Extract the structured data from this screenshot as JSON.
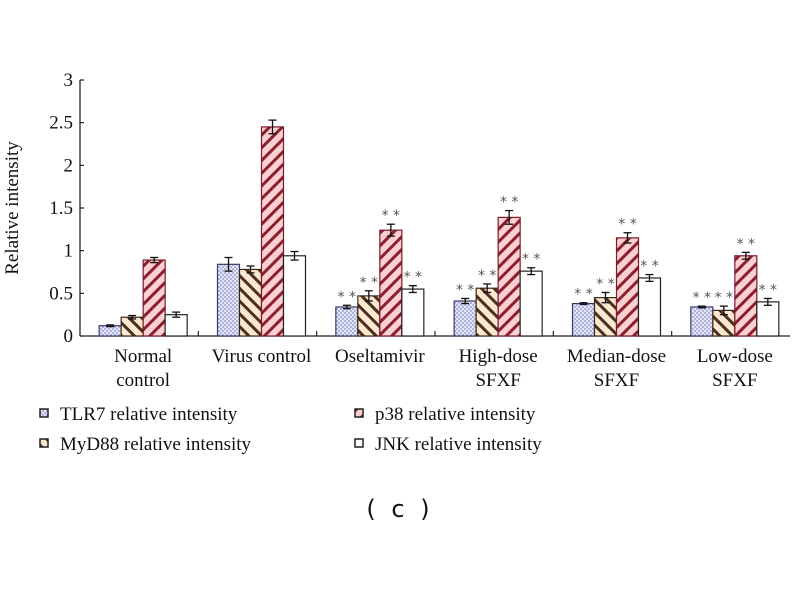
{
  "chart_data": {
    "type": "bar",
    "title": "",
    "xlabel": "",
    "ylabel": "Relative intensity",
    "ylim": [
      0,
      3
    ],
    "yticks": [
      "0",
      "0.5",
      "1",
      "1.5",
      "2",
      "2.5",
      "3"
    ],
    "yticks_values": [
      0,
      0.5,
      1,
      1.5,
      2,
      2.5,
      3
    ],
    "grid": false,
    "legend_position": "bottom",
    "categories": [
      [
        "Normal",
        "control"
      ],
      [
        "Virus control"
      ],
      [
        "Oseltamivir"
      ],
      [
        "High-dose",
        "SFXF"
      ],
      [
        "Median-dose",
        "SFXF"
      ],
      [
        "Low-dose",
        "SFXF"
      ]
    ],
    "series": [
      {
        "name": "TLR7 relative intensity",
        "pattern": "dots",
        "color": "#c9cdef",
        "edge": "#3a3a6a",
        "values": [
          0.12,
          0.84,
          0.34,
          0.41,
          0.38,
          0.34
        ],
        "errors": [
          0.01,
          0.08,
          0.02,
          0.03,
          0.01,
          0.01
        ],
        "significance": [
          "",
          "",
          "**",
          "**",
          "**",
          "**"
        ]
      },
      {
        "name": "MyD88 relative intensity",
        "pattern": "hatch-back",
        "color": "#fde4c8",
        "edge": "#3a2a1a",
        "values": [
          0.22,
          0.78,
          0.47,
          0.56,
          0.45,
          0.3
        ],
        "errors": [
          0.02,
          0.04,
          0.06,
          0.05,
          0.06,
          0.05
        ],
        "significance": [
          "",
          "",
          "**",
          "**",
          "**",
          "**"
        ]
      },
      {
        "name": "p38 relative intensity",
        "pattern": "hatch-fwd",
        "color": "#fcc8c8",
        "edge": "#7a1a2a",
        "values": [
          0.89,
          2.45,
          1.24,
          1.39,
          1.15,
          0.94
        ],
        "errors": [
          0.03,
          0.08,
          0.07,
          0.08,
          0.06,
          0.04
        ],
        "significance": [
          "",
          "",
          "**",
          "**",
          "**",
          "**"
        ]
      },
      {
        "name": "JNK relative intensity",
        "pattern": "none",
        "color": "#ffffff",
        "edge": "#222222",
        "values": [
          0.25,
          0.94,
          0.55,
          0.76,
          0.68,
          0.4
        ],
        "errors": [
          0.03,
          0.05,
          0.04,
          0.04,
          0.04,
          0.04
        ],
        "significance": [
          "",
          "",
          "**",
          "**",
          "**",
          "**"
        ]
      }
    ]
  },
  "panel_label": "( c )"
}
